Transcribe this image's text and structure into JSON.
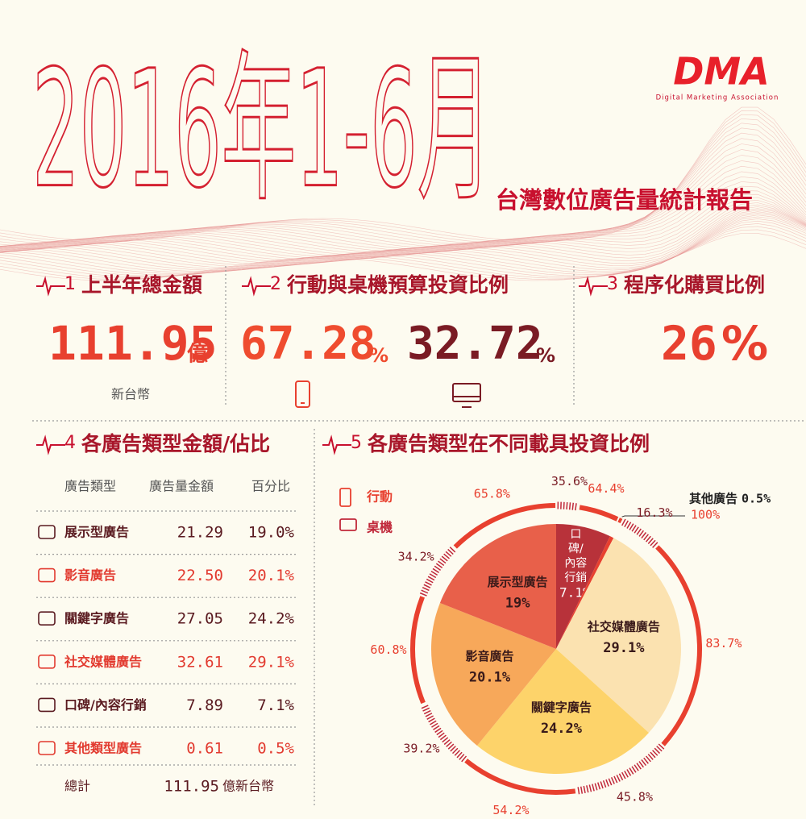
{
  "header": {
    "title": "2016年1-6月",
    "subtitle": "台灣數位廣告量統計報告",
    "logo": "DMA",
    "logo_tagline": "Digital Marketing Association"
  },
  "sections": [
    {
      "number": "1",
      "title": "上半年總金額",
      "value": 111.95,
      "unit": "億",
      "note": "新台幣"
    },
    {
      "number": "2",
      "title": "行動與桌機預算投資比例",
      "mobile": 67.28,
      "desktop": 32.72,
      "unit": "%"
    },
    {
      "number": "3",
      "title": "程序化購買比例",
      "value": 26,
      "unit": "%"
    },
    {
      "number": "4",
      "title": "各廣告類型金額/佔比"
    },
    {
      "number": "5",
      "title": "各廣告類型在不同載具投資比例"
    }
  ],
  "table": {
    "header": [
      "廣告類型",
      "廣告量金額",
      "百分比"
    ],
    "rows": [
      [
        "展示型廣告",
        "21.29",
        "19.0%"
      ],
      [
        "影音廣告",
        "22.50",
        "20.1%"
      ],
      [
        "關鍵字廣告",
        "27.05",
        "24.2%"
      ],
      [
        "社交媒體廣告",
        "32.61",
        "29.1%"
      ],
      [
        "口碑/內容行銷",
        "7.89",
        "7.1%"
      ],
      [
        "其他類型廣告",
        "0.61",
        "0.5%"
      ]
    ],
    "total": [
      "總計",
      "111.95",
      "億新台幣"
    ]
  },
  "chart_data": {
    "type": "pie",
    "categories": [
      "口碑/內容行銷",
      "其他廣告",
      "社交媒體廣告",
      "關鍵字廣告",
      "影音廣告",
      "展示型廣告"
    ],
    "values": [
      7.1,
      0.5,
      29.1,
      24.2,
      20.1,
      19
    ],
    "value_labels": [
      "7.1%",
      "0.5%",
      "29.1%",
      "24.2%",
      "20.1%",
      "19%"
    ],
    "colors": [
      "#b8323a",
      "#e8402f",
      "#fbe2b0",
      "#fdd36a",
      "#f7a85a",
      "#e8604a"
    ],
    "series": [
      {
        "name": "行動",
        "color": "#e8402f",
        "values": [
          64.4,
          100,
          83.7,
          54.2,
          60.8,
          65.8
        ],
        "value_labels": [
          "64.4%",
          "100%",
          "83.7%",
          "54.2%",
          "60.8%",
          "65.8%"
        ]
      },
      {
        "name": "桌機",
        "color": "#c0283a",
        "values": [
          35.6,
          null,
          16.3,
          45.8,
          39.2,
          34.2
        ],
        "value_labels": [
          "35.6%",
          null,
          "16.3%",
          "45.8%",
          "39.2%",
          "34.2%"
        ]
      }
    ]
  }
}
